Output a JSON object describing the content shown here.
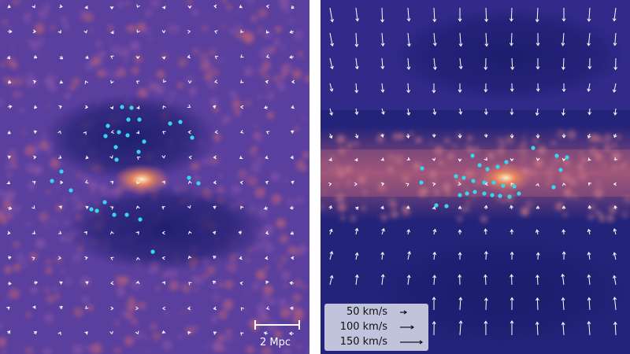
{
  "panels": [
    {
      "id": "left",
      "scale_bar": {
        "label": "2 Mpc"
      }
    },
    {
      "id": "right",
      "velocity_legend": [
        {
          "label": "50 km/s",
          "speed": 50
        },
        {
          "label": "100 km/s",
          "speed": 100
        },
        {
          "label": "150 km/s",
          "speed": 150
        }
      ]
    }
  ],
  "colors": {
    "background_dark": "#1c1d6e",
    "background_mid": "#5a3f9e",
    "filament": "#b9607a",
    "hot_core": "#fff1c8",
    "dots": "#36d7ee",
    "arrows": "#ffffff",
    "legend_bg": "#d6dae8"
  }
}
